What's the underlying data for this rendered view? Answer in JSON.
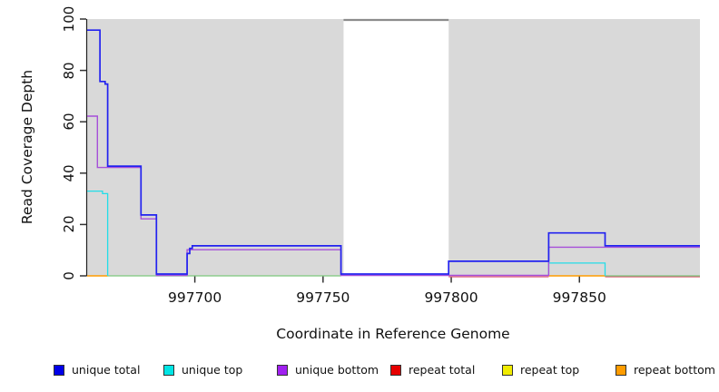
{
  "chart_data": {
    "type": "line",
    "step": true,
    "title": "",
    "xlabel": "Coordinate in Reference Genome",
    "ylabel": "Read Coverage Depth",
    "xlim": [
      997658,
      997897
    ],
    "ylim": [
      0,
      100
    ],
    "xticks": [
      997700,
      997750,
      997800,
      997850
    ],
    "yticks": [
      0,
      20,
      40,
      60,
      80,
      100
    ],
    "panel_bg": "#d9d9d9",
    "axis_color": "#333333",
    "no_data_gap": {
      "from": 997758,
      "to": 997799,
      "fill": "#ffffff",
      "cap_value": 100,
      "cap_color": "#8c8c8c"
    },
    "legend": [
      {
        "label": "unique total",
        "color": "#0000e8"
      },
      {
        "label": "unique top",
        "color": "#00e5e5"
      },
      {
        "label": "unique bottom",
        "color": "#a020f0"
      },
      {
        "label": "repeat total",
        "color": "#e60000"
      },
      {
        "label": "repeat top",
        "color": "#f0eb00"
      },
      {
        "label": "repeat bottom",
        "color": "#ff9c00"
      }
    ],
    "series": [
      {
        "name": "repeat total",
        "color": "#d9536e",
        "width": 1.2,
        "dy": 1,
        "paths": [
          [
            [
              997799,
              0
            ],
            [
              997838,
              0
            ]
          ],
          [
            [
              997860,
              0
            ],
            [
              997897,
              0
            ]
          ]
        ]
      },
      {
        "name": "top-bottom overlap baseline (rendered green)",
        "color": "#7dc87d",
        "width": 1.3,
        "dy": 0,
        "paths": [
          [
            [
              997666,
              0
            ],
            [
              997757,
              0
            ]
          ],
          [
            [
              997860,
              0
            ],
            [
              997897,
              0
            ]
          ]
        ]
      },
      {
        "name": "repeat bottom",
        "color": "#ff9c00",
        "width": 1.5,
        "dy": 0,
        "paths": [
          [
            [
              997658,
              0
            ],
            [
              997666,
              0
            ]
          ],
          [
            [
              997838,
              0
            ],
            [
              997860,
              0
            ]
          ]
        ]
      },
      {
        "name": "unique top",
        "color": "#22dde8",
        "width": 1.3,
        "dy": 0,
        "paths": [
          [
            [
              997658,
              33
            ],
            [
              997664,
              32
            ],
            [
              997666,
              0
            ]
          ],
          [
            [
              997838,
              0
            ],
            [
              997838,
              5
            ],
            [
              997860,
              0
            ]
          ]
        ]
      },
      {
        "name": "unique bottom",
        "color": "#a64fd9",
        "width": 1.4,
        "dy": -0.5,
        "paths": [
          [
            [
              997658,
              62
            ],
            [
              997662,
              42
            ],
            [
              997679,
              22
            ],
            [
              997685,
              0
            ],
            [
              997697,
              10
            ],
            [
              997757,
              0
            ],
            [
              997838,
              11
            ],
            [
              997897,
              11
            ]
          ]
        ]
      },
      {
        "name": "unique total",
        "color": "#2222f0",
        "width": 1.7,
        "dy": -2,
        "paths": [
          [
            [
              997658,
              95
            ],
            [
              997663,
              75
            ],
            [
              997665,
              74
            ],
            [
              997666,
              42
            ],
            [
              997679,
              23
            ],
            [
              997685,
              0
            ],
            [
              997697,
              8
            ],
            [
              997698,
              10
            ],
            [
              997699,
              11
            ],
            [
              997757,
              0
            ],
            [
              997799,
              5
            ],
            [
              997838,
              16
            ],
            [
              997860,
              11
            ],
            [
              997897,
              11
            ]
          ]
        ]
      }
    ]
  }
}
